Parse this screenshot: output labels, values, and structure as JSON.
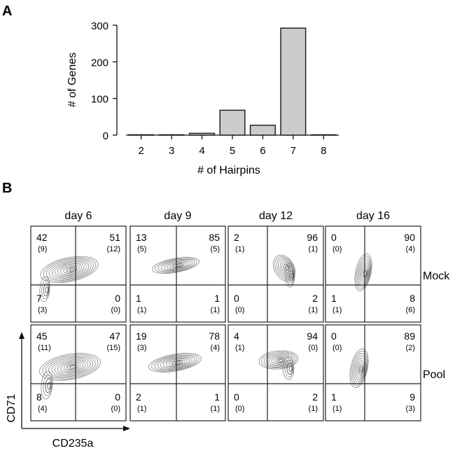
{
  "panel_a": {
    "label": "A",
    "chart_data": {
      "type": "bar",
      "title": "",
      "xlabel": "# of Hairpins",
      "ylabel": "# of Genes",
      "categories": [
        "2",
        "3",
        "4",
        "5",
        "6",
        "7",
        "8"
      ],
      "values": [
        1,
        1,
        5,
        68,
        27,
        292,
        1
      ],
      "ylim": [
        0,
        300
      ],
      "yticks": [
        "0",
        "100",
        "200",
        "300"
      ],
      "bar_color": "#cccccc",
      "grid": false
    }
  },
  "panel_b": {
    "label": "B",
    "x_axis_label": "CD235a",
    "y_axis_label": "CD71",
    "columns": [
      "day 6",
      "day 9",
      "day 12",
      "day 16"
    ],
    "rows": [
      {
        "name": "Mock",
        "plots": [
          {
            "ul": "42",
            "ul_sub": "(9)",
            "ur": "51",
            "ur_sub": "(12)",
            "ll": "7",
            "ll_sub": "(3)",
            "lr": "0",
            "lr_sub": "(0)"
          },
          {
            "ul": "13",
            "ul_sub": "(5)",
            "ur": "85",
            "ur_sub": "(5)",
            "ll": "1",
            "ll_sub": "(1)",
            "lr": "1",
            "lr_sub": "(1)"
          },
          {
            "ul": "2",
            "ul_sub": "(1)",
            "ur": "96",
            "ur_sub": "(1)",
            "ll": "0",
            "ll_sub": "(0)",
            "lr": "2",
            "lr_sub": "(1)"
          },
          {
            "ul": "0",
            "ul_sub": "(0)",
            "ur": "90",
            "ur_sub": "(4)",
            "ll": "1",
            "ll_sub": "(1)",
            "lr": "8",
            "lr_sub": "(6)"
          }
        ]
      },
      {
        "name": "Pool",
        "plots": [
          {
            "ul": "45",
            "ul_sub": "(11)",
            "ur": "47",
            "ur_sub": "(15)",
            "ll": "8",
            "ll_sub": "(4)",
            "lr": "0",
            "lr_sub": "(0)"
          },
          {
            "ul": "19",
            "ul_sub": "(3)",
            "ur": "78",
            "ur_sub": "(4)",
            "ll": "2",
            "ll_sub": "(1)",
            "lr": "1",
            "lr_sub": "(1)"
          },
          {
            "ul": "4",
            "ul_sub": "(1)",
            "ur": "94",
            "ur_sub": "(0)",
            "ll": "0",
            "ll_sub": "(0)",
            "lr": "2",
            "lr_sub": "(1)"
          },
          {
            "ul": "0",
            "ul_sub": "(0)",
            "ur": "89",
            "ur_sub": "(2)",
            "ll": "1",
            "ll_sub": "(1)",
            "lr": "9",
            "lr_sub": "(3)"
          }
        ]
      }
    ]
  }
}
